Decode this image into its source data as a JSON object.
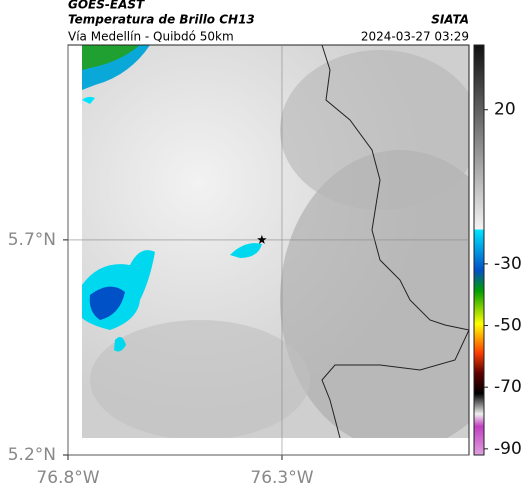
{
  "header": {
    "title": "GOES-EAST",
    "subtitle": "Temperatura de Brillo CH13",
    "route": "Vía Medellín - Quibdó 50km",
    "source": "SIATA",
    "timestamp": "2024-03-27 03:29"
  },
  "map": {
    "xlim": [
      -76.8,
      -75.863
    ],
    "ylim": [
      5.2,
      6.153
    ],
    "xticks": [
      {
        "value": -76.8,
        "label": "76.8°W"
      },
      {
        "value": -76.3,
        "label": "76.3°W"
      }
    ],
    "yticks": [
      {
        "value": 5.2,
        "label": "5.2°N"
      },
      {
        "value": 5.7,
        "label": "5.7°N"
      }
    ],
    "marker": {
      "lon": -76.347,
      "lat": 5.7
    }
  },
  "colorbar": {
    "lim": [
      -92,
      41
    ],
    "ticks": [
      20,
      -30,
      -50,
      -70,
      -90
    ]
  }
}
